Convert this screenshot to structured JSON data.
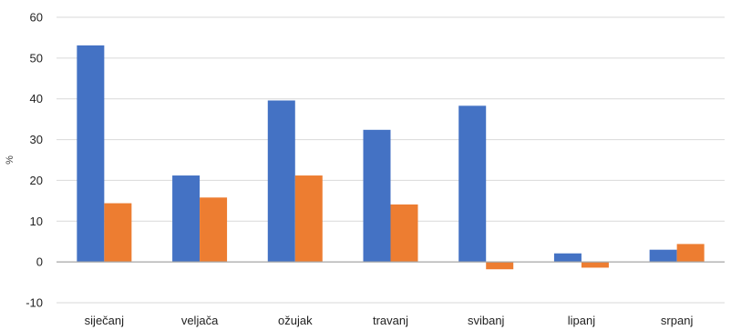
{
  "chart_data": {
    "type": "bar",
    "title": "",
    "xlabel": "",
    "ylabel": "%",
    "ylim": [
      -10,
      60
    ],
    "yticks": [
      -10,
      0,
      10,
      20,
      30,
      40,
      50,
      60
    ],
    "grid": true,
    "legend": "none",
    "categories": [
      "siječanj",
      "veljača",
      "ožujak",
      "travanj",
      "svibanj",
      "lipanj",
      "srpanj"
    ],
    "series": [
      {
        "color": "#4472C4",
        "values": [
          53.1,
          21.2,
          39.6,
          32.4,
          38.3,
          2.1,
          3.0
        ]
      },
      {
        "color": "#ED7D31",
        "values": [
          14.4,
          15.8,
          21.2,
          14.1,
          -1.8,
          -1.4,
          4.4
        ]
      }
    ]
  }
}
